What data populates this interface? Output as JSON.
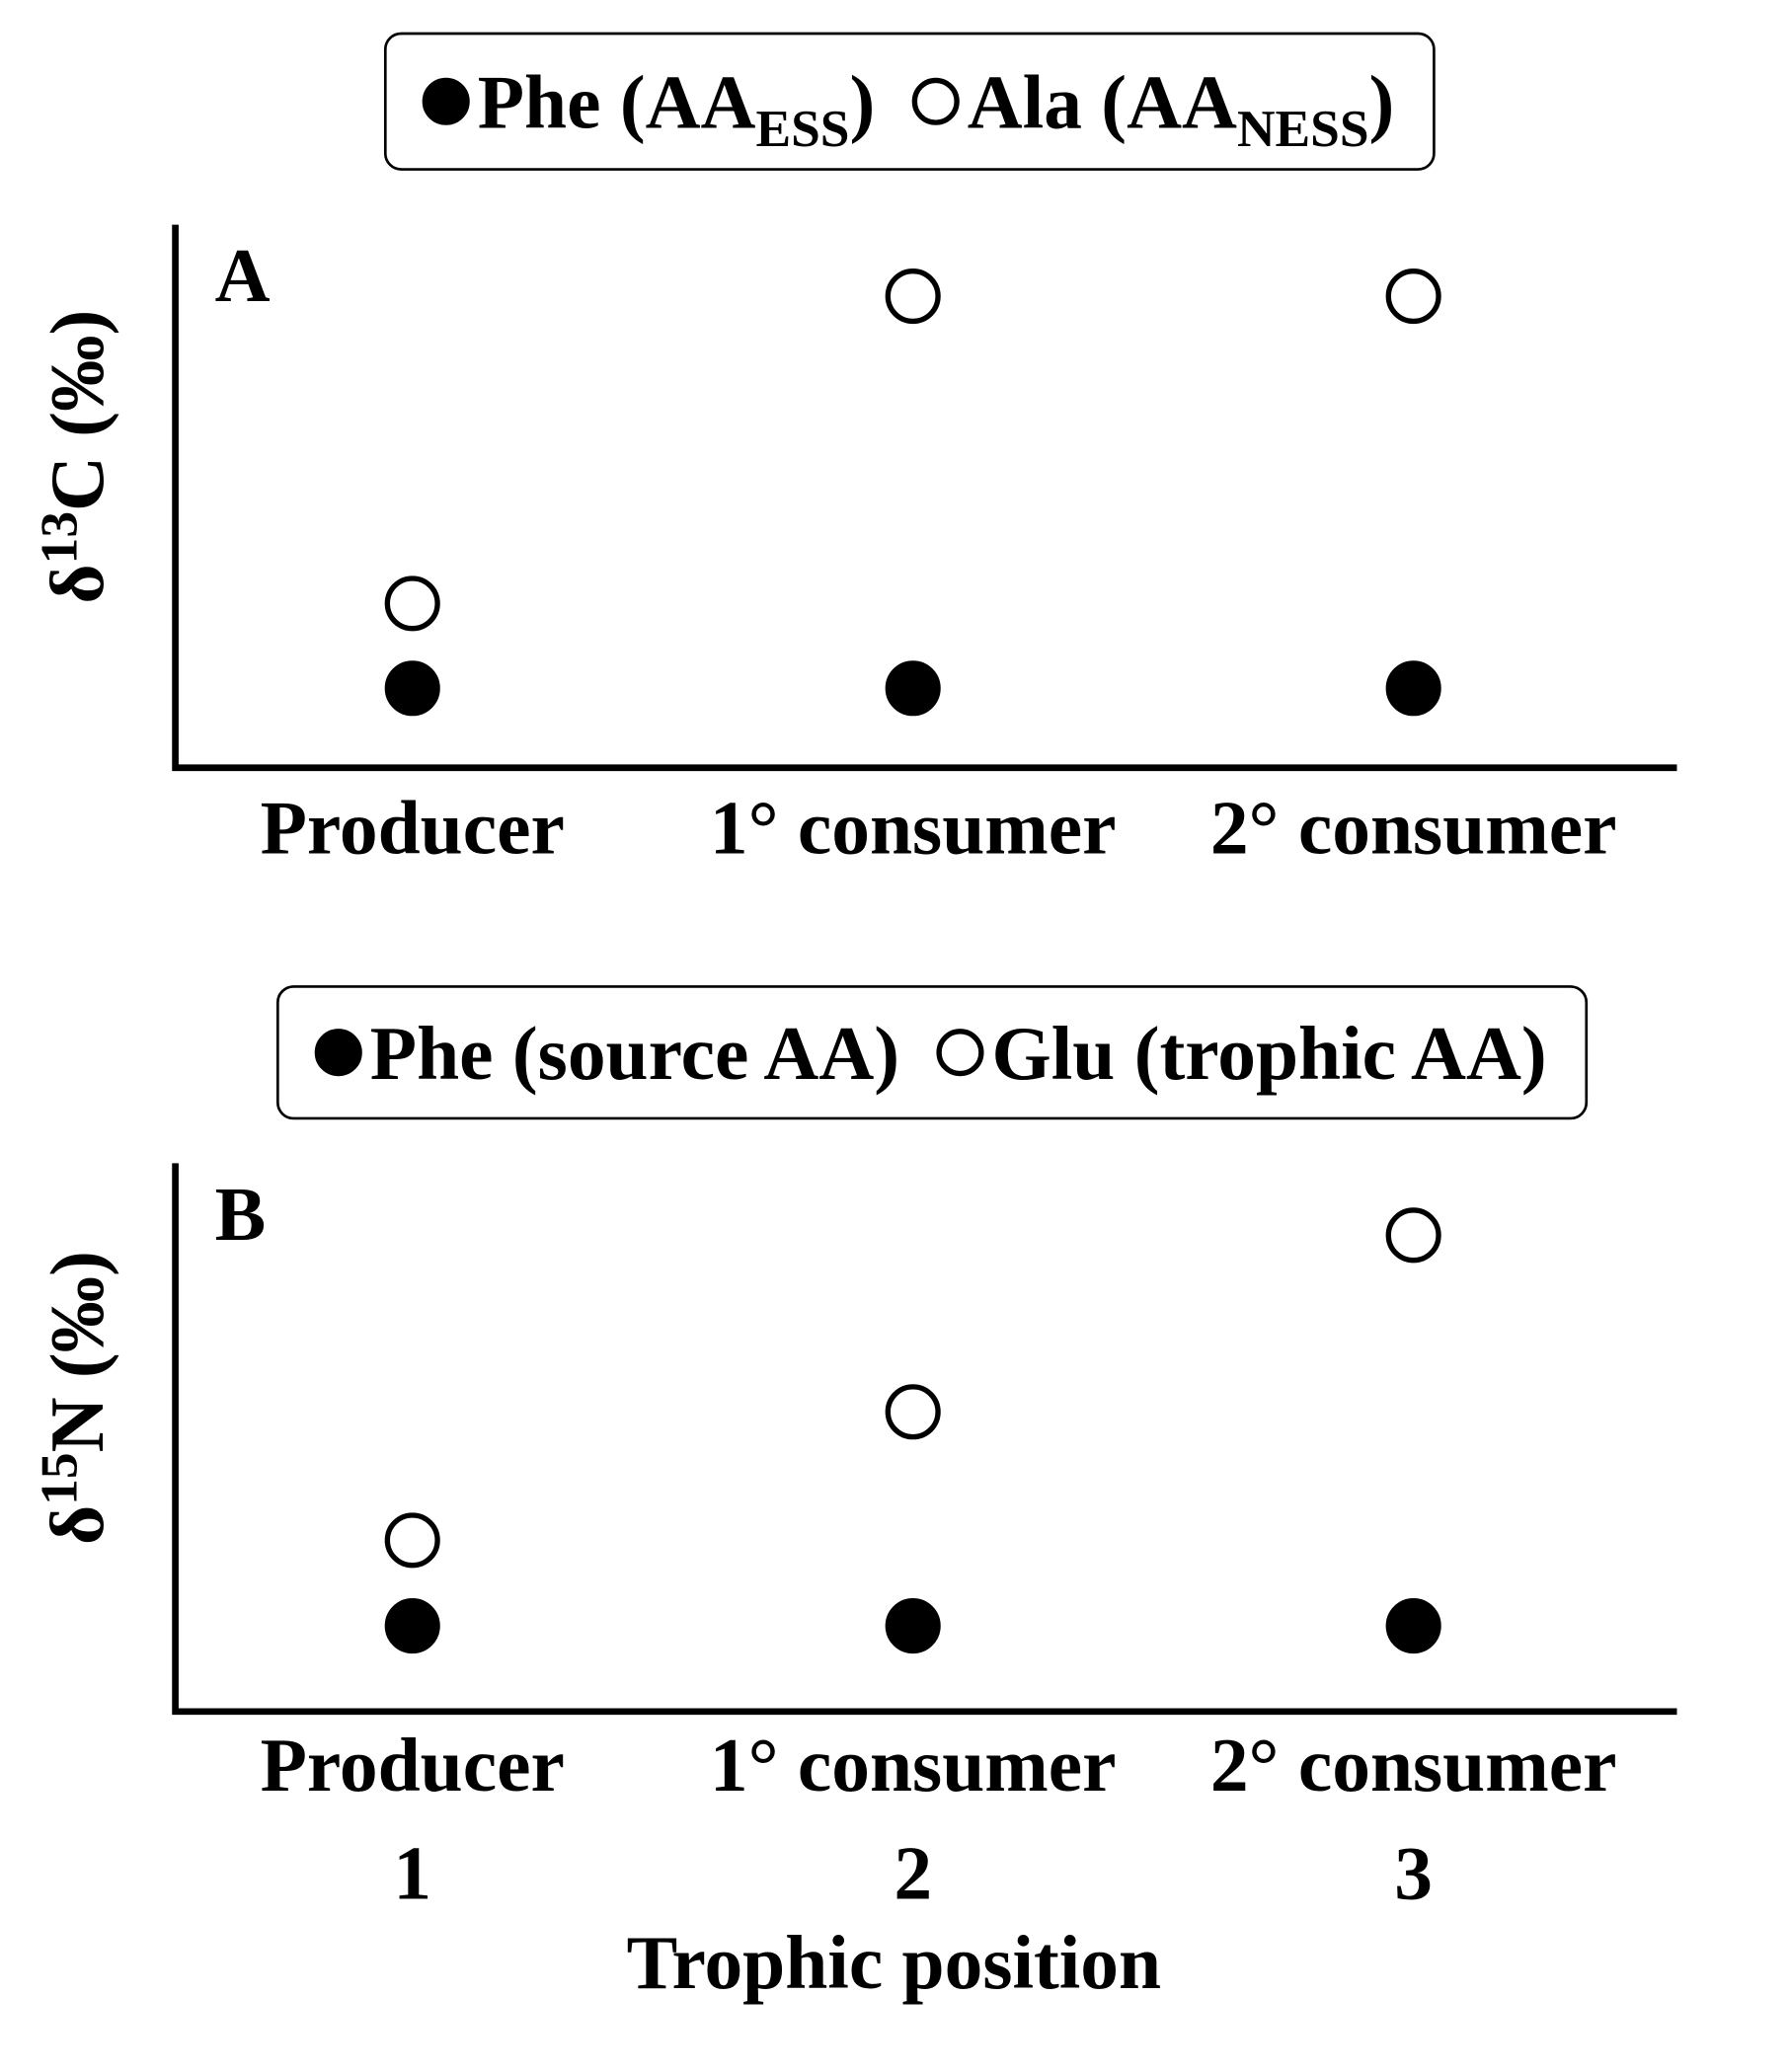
{
  "chart_data": [
    {
      "type": "scatter",
      "panel_label": "A",
      "ylabel": {
        "prefix": "δ",
        "sup": "13",
        "text": "C (‰)"
      },
      "categories": [
        "Producer",
        "1° consumer",
        "2° consumer"
      ],
      "ylim": [
        0,
        10
      ],
      "series": [
        {
          "name": "Phe (AA",
          "name_subscript": "ESS",
          "name_suffix": ")",
          "color": "#000000",
          "filled": true,
          "values": [
            1.5,
            1.5,
            1.5
          ]
        },
        {
          "name": "Ala (AA",
          "name_subscript": "NESS",
          "name_suffix": ")",
          "color": "#000000",
          "filled": false,
          "values": [
            3.1,
            8.9,
            8.9
          ]
        }
      ]
    },
    {
      "type": "scatter",
      "panel_label": "B",
      "ylabel": {
        "prefix": "δ",
        "sup": "15",
        "text": "N (‰)"
      },
      "categories": [
        "Producer",
        "1° consumer",
        "2° consumer"
      ],
      "x": [
        1,
        2,
        3
      ],
      "xlabel": "Trophic position",
      "ylim": [
        0,
        10
      ],
      "series": [
        {
          "name": "Phe (source AA)",
          "color": "#000000",
          "filled": true,
          "values": [
            1.6,
            1.6,
            1.6
          ]
        },
        {
          "name": "Glu (trophic AA)",
          "color": "#000000",
          "filled": false,
          "values": [
            3.2,
            5.6,
            8.9
          ]
        }
      ]
    }
  ]
}
